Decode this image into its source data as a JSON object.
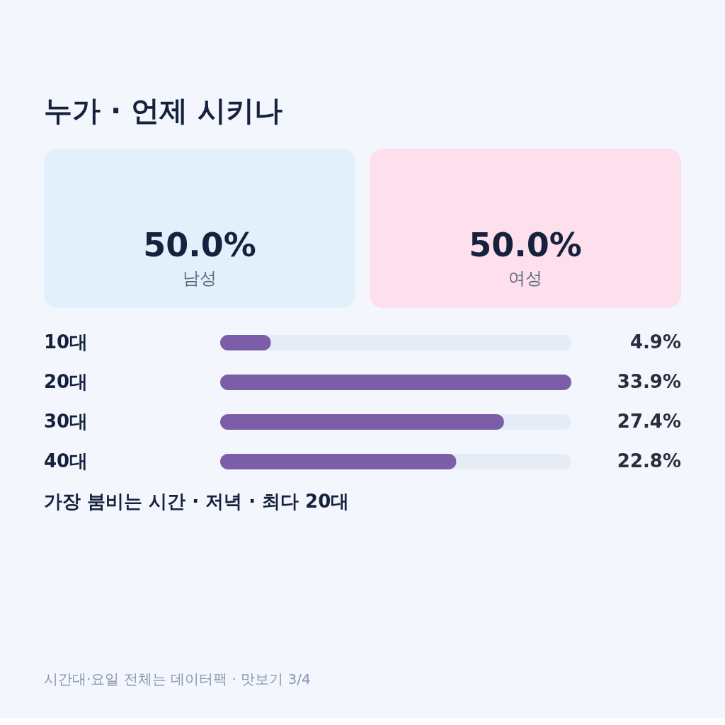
{
  "chart_data": [
    {
      "type": "other",
      "title": "누가 · 언제 시키나",
      "categories": [
        "남성",
        "여성"
      ],
      "values": [
        50.0,
        50.0
      ],
      "value_labels": [
        "50.0%",
        "50.0%"
      ],
      "colors": [
        "#e3f0fb",
        "#fde0ec"
      ]
    },
    {
      "type": "bar",
      "orientation": "horizontal",
      "categories": [
        "10대",
        "20대",
        "30대",
        "40대"
      ],
      "values": [
        4.9,
        33.9,
        27.4,
        22.8
      ],
      "color": "#7b5ea7",
      "value_labels": [
        "4.9%",
        "33.9%",
        "27.4%",
        "22.8%"
      ],
      "annotations": [
        "가장 붐비는 시간 · 저녁 · 최다 20대",
        "시간대·요일 전체는 데이터팩 · 맛보기 3/4"
      ]
    }
  ]
}
